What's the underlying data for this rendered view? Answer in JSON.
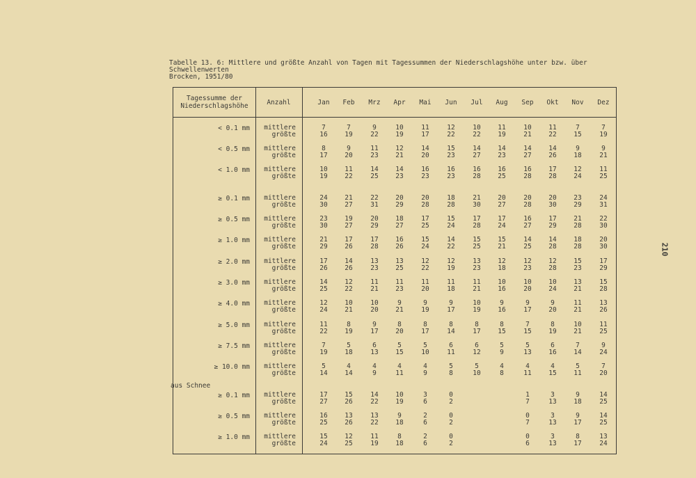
{
  "title": {
    "line1": "Tabelle 13. 6: Mittlere und größte Anzahl von Tagen  mit Tagessummen der Niederschlagshöhe unter bzw. über",
    "line2": "Schwellenwerten",
    "line3": "Brocken, 1951/80"
  },
  "page_number": "210",
  "table": {
    "header": {
      "col1_line1": "Tagessumme  der",
      "col1_line2": "Niederschlagshöhe",
      "col2": "Anzahl",
      "months": [
        "Jan",
        "Feb",
        "Mrz",
        "Apr",
        "Mai",
        "Jun",
        "Jul",
        "Aug",
        "Sep",
        "Okt",
        "Nov",
        "Dez"
      ]
    },
    "label_mean": "mittlere",
    "label_max": "größte",
    "section_snow": "aus Schnee",
    "rows": [
      {
        "threshold": "< 0.1 mm",
        "mittlere": [
          "7",
          "7",
          "9",
          "10",
          "11",
          "12",
          "10",
          "11",
          "10",
          "11",
          "7",
          "7"
        ],
        "groesste": [
          "16",
          "19",
          "22",
          "19",
          "17",
          "22",
          "22",
          "19",
          "21",
          "22",
          "15",
          "19"
        ]
      },
      {
        "threshold": "< 0.5 mm",
        "mittlere": [
          "8",
          "9",
          "11",
          "12",
          "14",
          "15",
          "14",
          "14",
          "14",
          "14",
          "9",
          "9"
        ],
        "groesste": [
          "17",
          "20",
          "23",
          "21",
          "20",
          "23",
          "27",
          "23",
          "27",
          "26",
          "18",
          "21"
        ]
      },
      {
        "threshold": "< 1.0 mm",
        "mittlere": [
          "10",
          "11",
          "14",
          "14",
          "16",
          "16",
          "16",
          "16",
          "16",
          "17",
          "12",
          "11"
        ],
        "groesste": [
          "19",
          "22",
          "25",
          "23",
          "23",
          "23",
          "28",
          "25",
          "28",
          "28",
          "24",
          "25"
        ]
      },
      {
        "threshold": "≥ 0.1 mm",
        "mittlere": [
          "24",
          "21",
          "22",
          "20",
          "20",
          "18",
          "21",
          "20",
          "20",
          "20",
          "23",
          "24"
        ],
        "groesste": [
          "30",
          "27",
          "31",
          "29",
          "28",
          "28",
          "30",
          "27",
          "28",
          "30",
          "29",
          "31"
        ]
      },
      {
        "threshold": "≥ 0.5 mm",
        "mittlere": [
          "23",
          "19",
          "20",
          "18",
          "17",
          "15",
          "17",
          "17",
          "16",
          "17",
          "21",
          "22"
        ],
        "groesste": [
          "30",
          "27",
          "29",
          "27",
          "25",
          "24",
          "28",
          "24",
          "27",
          "29",
          "28",
          "30"
        ]
      },
      {
        "threshold": "≥ 1.0 mm",
        "mittlere": [
          "21",
          "17",
          "17",
          "16",
          "15",
          "14",
          "15",
          "15",
          "14",
          "14",
          "18",
          "20"
        ],
        "groesste": [
          "29",
          "26",
          "28",
          "26",
          "24",
          "22",
          "25",
          "21",
          "25",
          "28",
          "28",
          "30"
        ]
      },
      {
        "threshold": "≥ 2.0 mm",
        "mittlere": [
          "17",
          "14",
          "13",
          "13",
          "12",
          "12",
          "13",
          "12",
          "12",
          "12",
          "15",
          "17"
        ],
        "groesste": [
          "26",
          "26",
          "23",
          "25",
          "22",
          "19",
          "23",
          "18",
          "23",
          "28",
          "23",
          "29"
        ]
      },
      {
        "threshold": "≥ 3.0 mm",
        "mittlere": [
          "14",
          "12",
          "11",
          "11",
          "11",
          "11",
          "11",
          "10",
          "10",
          "10",
          "13",
          "15"
        ],
        "groesste": [
          "25",
          "22",
          "21",
          "23",
          "20",
          "18",
          "21",
          "16",
          "20",
          "24",
          "21",
          "28"
        ]
      },
      {
        "threshold": "≥ 4.0 mm",
        "mittlere": [
          "12",
          "10",
          "10",
          "9",
          "9",
          "9",
          "10",
          "9",
          "9",
          "9",
          "11",
          "13"
        ],
        "groesste": [
          "24",
          "21",
          "20",
          "21",
          "19",
          "17",
          "19",
          "16",
          "17",
          "20",
          "21",
          "26"
        ]
      },
      {
        "threshold": "≥ 5.0 mm",
        "mittlere": [
          "11",
          "8",
          "9",
          "8",
          "8",
          "8",
          "8",
          "8",
          "7",
          "8",
          "10",
          "11"
        ],
        "groesste": [
          "22",
          "19",
          "17",
          "20",
          "17",
          "14",
          "17",
          "15",
          "15",
          "19",
          "21",
          "25"
        ]
      },
      {
        "threshold": "≥ 7.5 mm",
        "mittlere": [
          "7",
          "5",
          "6",
          "5",
          "5",
          "6",
          "6",
          "5",
          "5",
          "6",
          "7",
          "9"
        ],
        "groesste": [
          "19",
          "18",
          "13",
          "15",
          "10",
          "11",
          "12",
          "9",
          "13",
          "16",
          "14",
          "24"
        ]
      },
      {
        "threshold": "≥ 10.0 mm",
        "mittlere": [
          "5",
          "4",
          "4",
          "4",
          "4",
          "5",
          "5",
          "4",
          "4",
          "4",
          "5",
          "7"
        ],
        "groesste": [
          "14",
          "14",
          "9",
          "11",
          "9",
          "8",
          "10",
          "8",
          "11",
          "15",
          "11",
          "20"
        ]
      }
    ],
    "snow_rows": [
      {
        "threshold": "≥ 0.1 mm",
        "mittlere": [
          "17",
          "15",
          "14",
          "10",
          "3",
          "0",
          "",
          "",
          "1",
          "3",
          "9",
          "14"
        ],
        "groesste": [
          "27",
          "26",
          "22",
          "19",
          "6",
          "2",
          "",
          "",
          "7",
          "13",
          "18",
          "25"
        ]
      },
      {
        "threshold": "≥ 0.5 mm",
        "mittlere": [
          "16",
          "13",
          "13",
          "9",
          "2",
          "0",
          "",
          "",
          "0",
          "3",
          "9",
          "14"
        ],
        "groesste": [
          "25",
          "26",
          "22",
          "18",
          "6",
          "2",
          "",
          "",
          "7",
          "13",
          "17",
          "25"
        ]
      },
      {
        "threshold": "≥ 1.0 mm",
        "mittlere": [
          "15",
          "12",
          "11",
          "8",
          "2",
          "0",
          "",
          "",
          "0",
          "3",
          "8",
          "13"
        ],
        "groesste": [
          "24",
          "25",
          "19",
          "18",
          "6",
          "2",
          "",
          "",
          "6",
          "13",
          "17",
          "24"
        ]
      }
    ]
  }
}
